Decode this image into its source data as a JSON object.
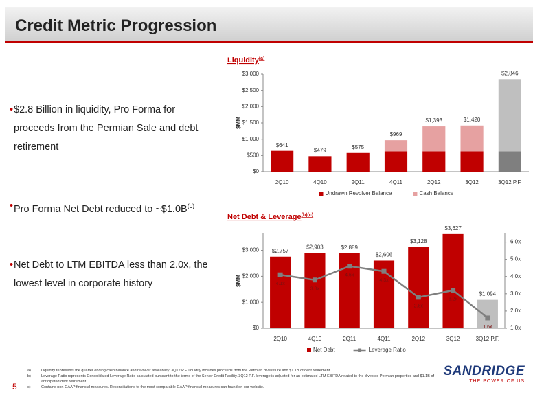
{
  "header": {
    "title": "Credit Metric Progression"
  },
  "bullets": [
    {
      "text": "$2.8 Billion in liquidity, Pro Forma for proceeds from the Permian Sale and debt retirement"
    },
    {
      "text": "Pro Forma Net Debt reduced to ~$1.0B",
      "note": "(c)"
    },
    {
      "text": "Net Debt to LTM EBITDA less than 2.0x, the lowest level in corporate history"
    }
  ],
  "chart_data": [
    {
      "type": "bar",
      "stacked": true,
      "title": "Liquidity",
      "title_note": "(a)",
      "ylabel": "$MM",
      "categories": [
        "2Q10",
        "4Q10",
        "2Q11",
        "4Q11",
        "2Q12",
        "3Q12",
        "3Q12 P.F."
      ],
      "series": [
        {
          "name": "Undrawn Revolver Balance",
          "color": "#c00000",
          "point_colors": [
            "#c00000",
            "#c00000",
            "#c00000",
            "#c00000",
            "#c00000",
            "#c00000",
            "#7f7f7f"
          ],
          "values": [
            641,
            479,
            575,
            625,
            625,
            625,
            625
          ]
        },
        {
          "name": "Cash Balance",
          "color": "#e6a1a1",
          "point_colors": [
            "#e6a1a1",
            "#e6a1a1",
            "#e6a1a1",
            "#e6a1a1",
            "#e6a1a1",
            "#e6a1a1",
            "#bfbfbf"
          ],
          "values": [
            0,
            0,
            0,
            344,
            768,
            795,
            2221
          ]
        }
      ],
      "totals": [
        641,
        479,
        575,
        969,
        1393,
        1420,
        2846
      ],
      "total_labels": [
        "$641",
        "$479",
        "$575",
        "$969",
        "$1,393",
        "$1,420",
        "$2,846"
      ],
      "ylim": [
        0,
        3000
      ],
      "yticks": [
        {
          "value": 0,
          "label": "$0"
        },
        {
          "value": 500,
          "label": "$500"
        },
        {
          "value": 1000,
          "label": "$1,000"
        },
        {
          "value": 1500,
          "label": "$1,500"
        },
        {
          "value": 2000,
          "label": "$2,000"
        },
        {
          "value": 2500,
          "label": "$2,500"
        },
        {
          "value": 3000,
          "label": "$3,000"
        }
      ]
    },
    {
      "type": "bar",
      "title": "Net Debt & Leverage",
      "title_note": "(b)(c)",
      "ylabel": "$MM",
      "categories": [
        "2Q10",
        "4Q10",
        "2Q11",
        "4Q11",
        "2Q12",
        "3Q12",
        "3Q12 P.F."
      ],
      "series": [
        {
          "name": "Net Debt",
          "color": "#c00000",
          "point_colors": [
            "#c00000",
            "#c00000",
            "#c00000",
            "#c00000",
            "#c00000",
            "#c00000",
            "#bfbfbf"
          ],
          "values": [
            2757,
            2903,
            2889,
            2606,
            3128,
            3627,
            1094
          ],
          "value_labels": [
            "$2,757",
            "$2,903",
            "$2,889",
            "$2,606",
            "$3,128",
            "$3,627",
            "$1,094"
          ]
        },
        {
          "name": "Leverage Ratio",
          "type": "line",
          "axis": "y2",
          "color": "#7f7f7f",
          "values": [
            4.1,
            3.8,
            4.6,
            4.3,
            2.8,
            3.2,
            1.6
          ],
          "value_labels": [
            "4.1x",
            "3.8x",
            "4.6x",
            "4.3x",
            "2.8x",
            "3.2x",
            "1.6x"
          ]
        }
      ],
      "ylim": [
        0,
        3650
      ],
      "yticks": [
        {
          "value": 0,
          "label": "$0"
        },
        {
          "value": 1000,
          "label": "$1,000"
        },
        {
          "value": 2000,
          "label": "$2,000"
        },
        {
          "value": 3000,
          "label": "$3,000"
        }
      ],
      "y2lim": [
        1,
        6.5
      ],
      "y2ticks": [
        {
          "value": 1,
          "label": "1.0x"
        },
        {
          "value": 2,
          "label": "2.0x"
        },
        {
          "value": 3,
          "label": "3.0x"
        },
        {
          "value": 4,
          "label": "4.0x"
        },
        {
          "value": 5,
          "label": "5.0x"
        },
        {
          "value": 6,
          "label": "6.0x"
        }
      ]
    }
  ],
  "footnotes": [
    {
      "mark": "a)",
      "text": "Liquidity represents the quarter ending cash balance and revolver availability. 3Q12 P.F. liquidity includes proceeds from the Permian divestiture and $1.1B of debt retirement."
    },
    {
      "mark": "b)",
      "text": "Leverage Ratio represents Consolidated Leverage Ratio calculated pursuant to the terms of the Senior Credit Facility. 3Q12 P.F. leverage is adjusted for an estimated LTM EBITDA related to the divested Permian properties and $1.1B of anticipated debt retirement."
    },
    {
      "mark": "c)",
      "text": "Contains non-GAAP financial measures. Reconciliations to the most comparable GAAP financial measures can found on our website."
    }
  ],
  "page_number": "5",
  "logo": {
    "name": "SANDRIDGE",
    "tagline": "THE POWER OF US"
  }
}
